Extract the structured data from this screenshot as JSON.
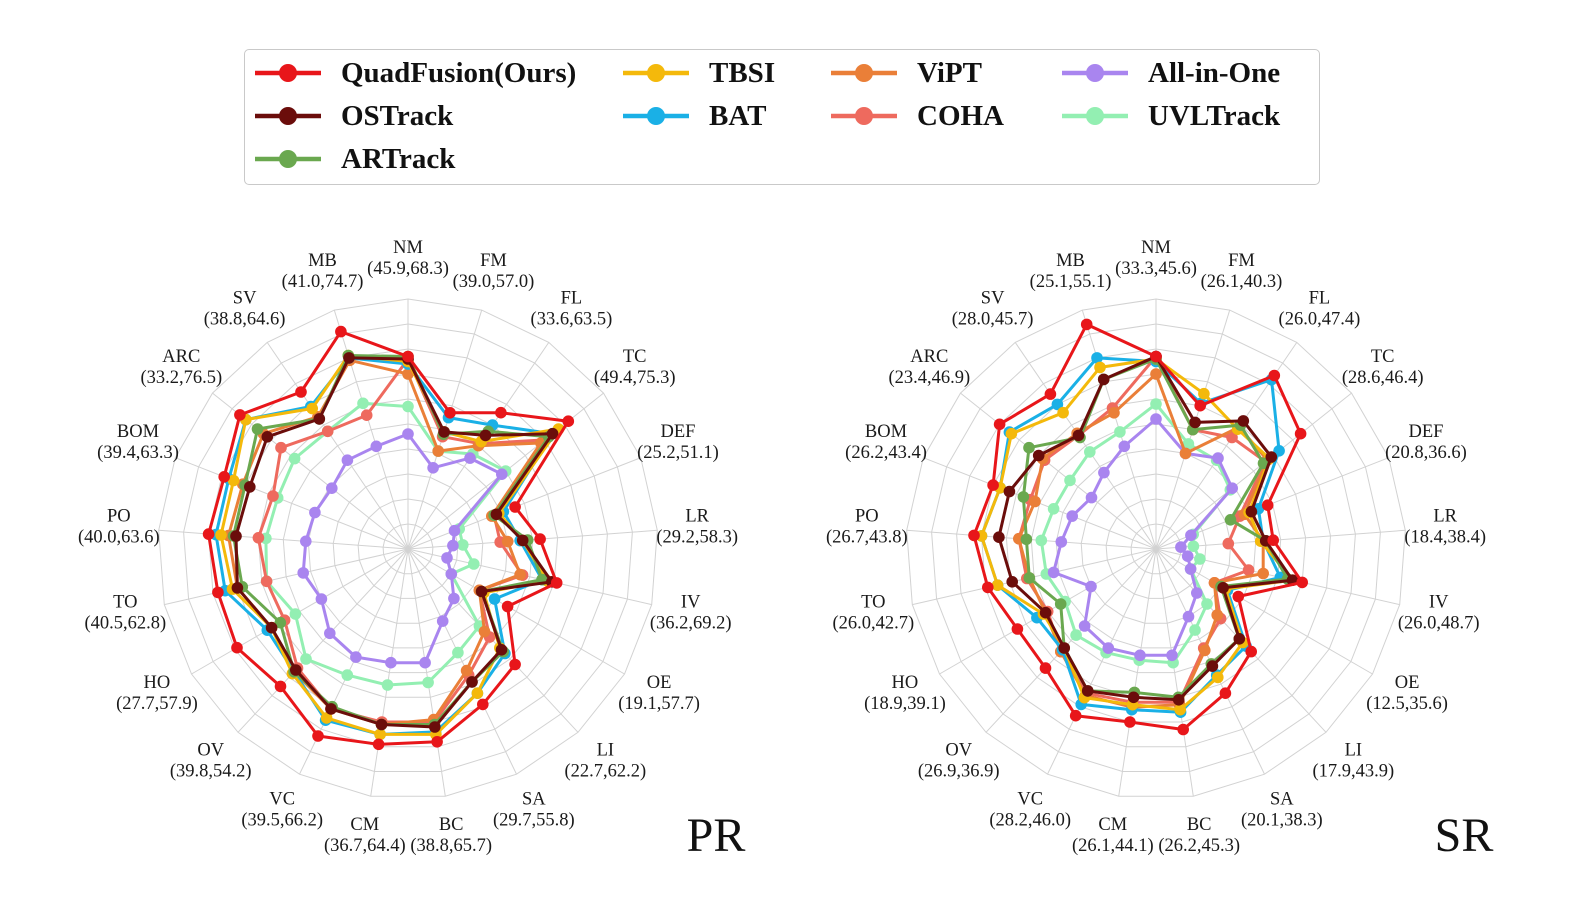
{
  "legend": [
    {
      "label": "QuadFusion(Ours)",
      "color": "#e8161a"
    },
    {
      "label": "OSTrack",
      "color": "#6b0d0b"
    },
    {
      "label": "ARTrack",
      "color": "#6aa84f"
    },
    {
      "label": "TBSI",
      "color": "#f4b90b"
    },
    {
      "label": "BAT",
      "color": "#1ab0e6"
    },
    {
      "label": "ViPT",
      "color": "#ea7f38"
    },
    {
      "label": "COHA",
      "color": "#ee6a5e"
    },
    {
      "label": "All-in-One",
      "color": "#a985ef"
    },
    {
      "label": "UVLTrack",
      "color": "#93efb2"
    }
  ],
  "chart_data": [
    {
      "type": "radar",
      "title": "PR",
      "axes": [
        "NM",
        "FM",
        "FL",
        "TC",
        "DEF",
        "LR",
        "IV",
        "OE",
        "LI",
        "SA",
        "BC",
        "CM",
        "VC",
        "OV",
        "HO",
        "TO",
        "PO",
        "BOM",
        "ARC",
        "SV",
        "MB"
      ],
      "axis_ranges": [
        "(45.9,68.3)",
        "(39.0,57.0)",
        "(33.6,63.5)",
        "(49.4,75.3)",
        "(25.2,51.1)",
        "(29.2,58.3)",
        "(36.2,69.2)",
        "(19.1,57.7)",
        "(22.7,62.2)",
        "(29.7,55.8)",
        "(38.8,65.7)",
        "(36.7,64.4)",
        "(39.5,66.2)",
        "(39.8,54.2)",
        "(27.7,57.9)",
        "(40.5,62.8)",
        "(40.0,63.6)",
        "(39.4,63.3)",
        "(33.2,76.5)",
        "(38.8,64.6)",
        "(41.0,74.7)"
      ],
      "scale_note": "values expressed as fraction of outer ring radius",
      "series": [
        {
          "name": "QuadFusion(Ours)",
          "values": [
            0.77,
            0.57,
            0.66,
            0.82,
            0.46,
            0.53,
            0.61,
            0.46,
            0.63,
            0.69,
            0.78,
            0.79,
            0.83,
            0.75,
            0.79,
            0.78,
            0.8,
            0.79,
            0.86,
            0.76,
            0.91
          ]
        },
        {
          "name": "OSTrack",
          "values": [
            0.76,
            0.49,
            0.55,
            0.74,
            0.38,
            0.46,
            0.59,
            0.34,
            0.55,
            0.59,
            0.72,
            0.71,
            0.71,
            0.66,
            0.63,
            0.7,
            0.69,
            0.68,
            0.72,
            0.63,
            0.8
          ]
        },
        {
          "name": "ARTrack",
          "values": [
            0.77,
            0.48,
            0.57,
            0.72,
            0.37,
            0.48,
            0.55,
            0.34,
            0.56,
            0.59,
            0.71,
            0.71,
            0.7,
            0.67,
            0.59,
            0.68,
            0.7,
            0.7,
            0.77,
            0.63,
            0.81
          ]
        },
        {
          "name": "TBSI",
          "values": [
            0.75,
            0.49,
            0.52,
            0.77,
            0.39,
            0.46,
            0.57,
            0.35,
            0.54,
            0.64,
            0.75,
            0.75,
            0.75,
            0.68,
            0.63,
            0.72,
            0.75,
            0.75,
            0.83,
            0.68,
            0.81
          ]
        },
        {
          "name": "BAT",
          "values": [
            0.74,
            0.55,
            0.6,
            0.74,
            0.41,
            0.45,
            0.55,
            0.4,
            0.57,
            0.64,
            0.74,
            0.75,
            0.76,
            0.67,
            0.65,
            0.75,
            0.77,
            0.77,
            0.83,
            0.69,
            0.8
          ]
        },
        {
          "name": "ViPT",
          "values": [
            0.7,
            0.41,
            0.5,
            0.68,
            0.36,
            0.4,
            0.46,
            0.33,
            0.45,
            0.54,
            0.69,
            0.71,
            0.71,
            0.67,
            0.63,
            0.7,
            0.72,
            0.71,
            0.74,
            0.64,
            0.79
          ]
        },
        {
          "name": "COHA",
          "values": [
            0.76,
            0.47,
            0.51,
            0.7,
            0.37,
            0.37,
            0.47,
            0.33,
            0.48,
            0.56,
            0.7,
            0.7,
            0.71,
            0.65,
            0.57,
            0.58,
            0.6,
            0.58,
            0.65,
            0.57,
            0.56
          ]
        },
        {
          "name": "All-in-One",
          "values": [
            0.46,
            0.34,
            0.44,
            0.48,
            0.2,
            0.18,
            0.16,
            0.2,
            0.27,
            0.32,
            0.46,
            0.46,
            0.48,
            0.46,
            0.4,
            0.43,
            0.41,
            0.4,
            0.39,
            0.43,
            0.43
          ]
        },
        {
          "name": "UVLTrack",
          "values": [
            0.57,
            0.41,
            0.46,
            0.5,
            0.22,
            0.22,
            0.27,
            0.2,
            0.42,
            0.46,
            0.54,
            0.55,
            0.56,
            0.6,
            0.52,
            0.58,
            0.57,
            0.56,
            0.58,
            0.57,
            0.61
          ]
        }
      ]
    },
    {
      "type": "radar",
      "title": "SR",
      "axes": [
        "NM",
        "FM",
        "FL",
        "TC",
        "DEF",
        "LR",
        "IV",
        "OE",
        "LI",
        "SA",
        "BC",
        "CM",
        "VC",
        "OV",
        "HO",
        "TO",
        "PO",
        "BOM",
        "ARC",
        "SV",
        "MB"
      ],
      "axis_ranges": [
        "(33.3,45.6)",
        "(26.1,40.3)",
        "(26.0,47.4)",
        "(28.6,46.4)",
        "(20.8,36.6)",
        "(18.4,38.4)",
        "(26.0,48.7)",
        "(12.5,35.6)",
        "(17.9,43.9)",
        "(20.1,38.3)",
        "(26.2,45.3)",
        "(26.1,44.1)",
        "(28.2,46.0)",
        "(26.9,36.9)",
        "(18.9,39.1)",
        "(26.0,42.7)",
        "(26.7,43.8)",
        "(26.2,43.4)",
        "(23.4,46.9)",
        "(28.0,45.7)",
        "(25.1,55.1)"
      ],
      "scale_note": "values expressed as fraction of outer ring radius",
      "series": [
        {
          "name": "QuadFusion(Ours)",
          "values": [
            0.77,
            0.6,
            0.84,
            0.74,
            0.48,
            0.47,
            0.6,
            0.38,
            0.56,
            0.64,
            0.73,
            0.7,
            0.74,
            0.65,
            0.64,
            0.69,
            0.73,
            0.7,
            0.8,
            0.75,
            0.94
          ]
        },
        {
          "name": "OSTrack",
          "values": [
            0.77,
            0.53,
            0.62,
            0.59,
            0.41,
            0.44,
            0.56,
            0.31,
            0.49,
            0.52,
            0.61,
            0.6,
            0.63,
            0.54,
            0.51,
            0.59,
            0.63,
            0.63,
            0.6,
            0.55,
            0.71
          ]
        },
        {
          "name": "ARTrack",
          "values": [
            0.76,
            0.5,
            0.6,
            0.55,
            0.32,
            0.44,
            0.54,
            0.3,
            0.49,
            0.51,
            0.6,
            0.58,
            0.63,
            0.54,
            0.44,
            0.52,
            0.52,
            0.57,
            0.65,
            0.54,
            0.71
          ]
        },
        {
          "name": "TBSI",
          "values": [
            0.76,
            0.65,
            0.58,
            0.58,
            0.4,
            0.42,
            0.56,
            0.32,
            0.51,
            0.57,
            0.65,
            0.63,
            0.66,
            0.54,
            0.52,
            0.65,
            0.7,
            0.67,
            0.74,
            0.66,
            0.76
          ]
        },
        {
          "name": "BAT",
          "values": [
            0.75,
            0.61,
            0.82,
            0.63,
            0.44,
            0.43,
            0.51,
            0.33,
            0.53,
            0.56,
            0.66,
            0.65,
            0.69,
            0.55,
            0.55,
            0.65,
            0.7,
            0.67,
            0.75,
            0.7,
            0.8
          ]
        },
        {
          "name": "ViPT",
          "values": [
            0.7,
            0.4,
            0.59,
            0.57,
            0.38,
            0.43,
            0.44,
            0.27,
            0.36,
            0.45,
            0.63,
            0.64,
            0.65,
            0.56,
            0.51,
            0.52,
            0.55,
            0.52,
            0.58,
            0.56,
            0.57
          ]
        },
        {
          "name": "COHA",
          "values": [
            0.77,
            0.5,
            0.54,
            0.56,
            0.36,
            0.29,
            0.38,
            0.27,
            0.38,
            0.44,
            0.62,
            0.62,
            0.64,
            0.56,
            0.5,
            0.53,
            0.55,
            0.54,
            0.57,
            0.55,
            0.59
          ]
        },
        {
          "name": "All-in-One",
          "values": [
            0.52,
            0.4,
            0.44,
            0.39,
            0.15,
            0.1,
            0.13,
            0.16,
            0.24,
            0.3,
            0.43,
            0.43,
            0.44,
            0.42,
            0.3,
            0.42,
            0.38,
            0.36,
            0.33,
            0.37,
            0.43
          ]
        },
        {
          "name": "UVLTrack",
          "values": [
            0.58,
            0.44,
            0.43,
            0.38,
            0.16,
            0.15,
            0.18,
            0.16,
            0.3,
            0.36,
            0.46,
            0.45,
            0.46,
            0.47,
            0.42,
            0.45,
            0.46,
            0.44,
            0.44,
            0.47,
            0.49
          ]
        }
      ]
    }
  ]
}
